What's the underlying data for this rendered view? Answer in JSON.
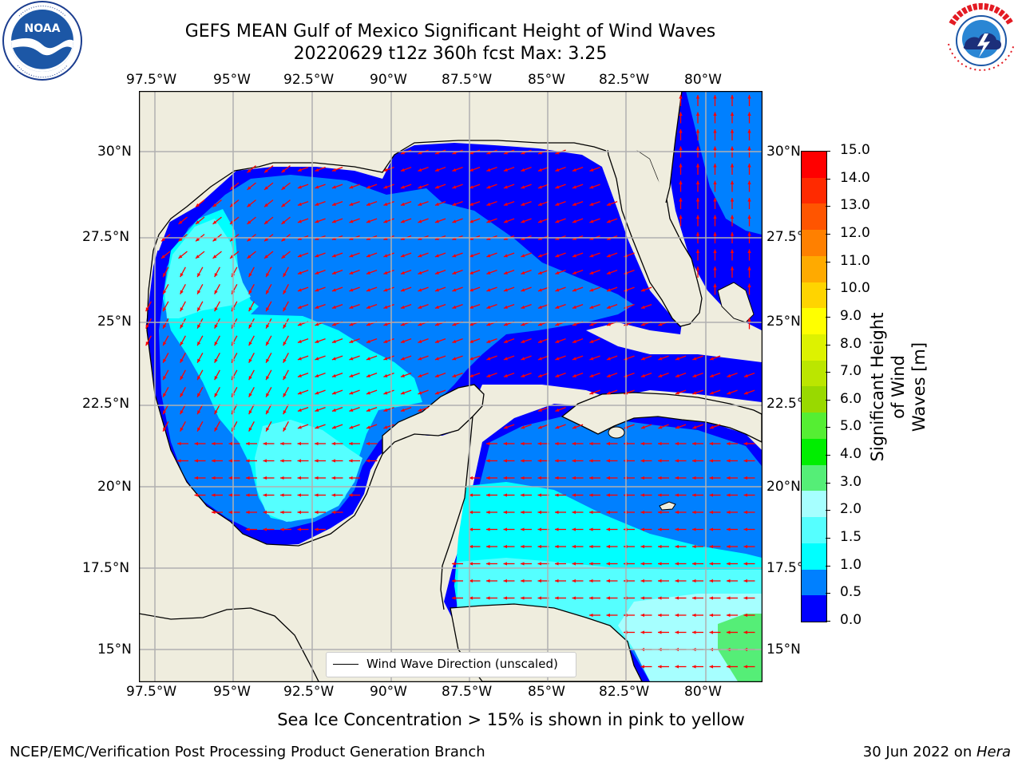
{
  "title": {
    "line1": "GEFS MEAN Gulf of Mexico Significant Height of Wind Waves",
    "line2": "20220629 t12z 360h fcst   Max: 3.25"
  },
  "logos": {
    "left": {
      "icon": "noaa-logo",
      "text": "NOAA",
      "ring_text": "NATIONAL OCEANIC AND ATMOSPHERIC ADMINISTRATION · U.S. DEPARTMENT OF COMMERCE"
    },
    "right": {
      "icon": "national-weather-service-logo",
      "ring_text": "NATIONAL WEATHER SERVICE"
    }
  },
  "map": {
    "lon_labels": [
      "97.5°W",
      "95°W",
      "92.5°W",
      "90°W",
      "87.5°W",
      "85°W",
      "82.5°W",
      "80°W"
    ],
    "lat_labels": [
      "30°N",
      "27.5°N",
      "25°N",
      "22.5°N",
      "20°N",
      "17.5°N",
      "15°N"
    ],
    "legend": "Wind Wave Direction (unscaled)",
    "land_color": "#efedde",
    "arrow_color": "#ff0000"
  },
  "colorbar": {
    "label": "Significant Height of Wind Waves [m]",
    "label_line1": "Significant Height of Wind",
    "label_line2": "Waves [m]",
    "ticks": [
      "15.0",
      "14.0",
      "13.0",
      "12.0",
      "11.0",
      "10.0",
      "9.0",
      "8.0",
      "7.0",
      "6.0",
      "5.0",
      "4.0",
      "3.0",
      "2.0",
      "1.5",
      "1.0",
      "0.5",
      "0.0"
    ],
    "colors": [
      "#ff0000",
      "#ff2a00",
      "#ff5500",
      "#ff8000",
      "#ffaa00",
      "#ffd400",
      "#ffff00",
      "#ddf200",
      "#bbe600",
      "#99d900",
      "#55ee33",
      "#00ee00",
      "#55ee77",
      "#a6ffff",
      "#55ffff",
      "#00ffff",
      "#0080ff",
      "#0000ff"
    ]
  },
  "note": "Sea Ice Concentration > 15% is shown in pink to yellow",
  "footer": {
    "left": "NCEP/EMC/Verification Post Processing Product Generation Branch",
    "right_date": "30 Jun 2022 on ",
    "right_machine": "Hera"
  }
}
